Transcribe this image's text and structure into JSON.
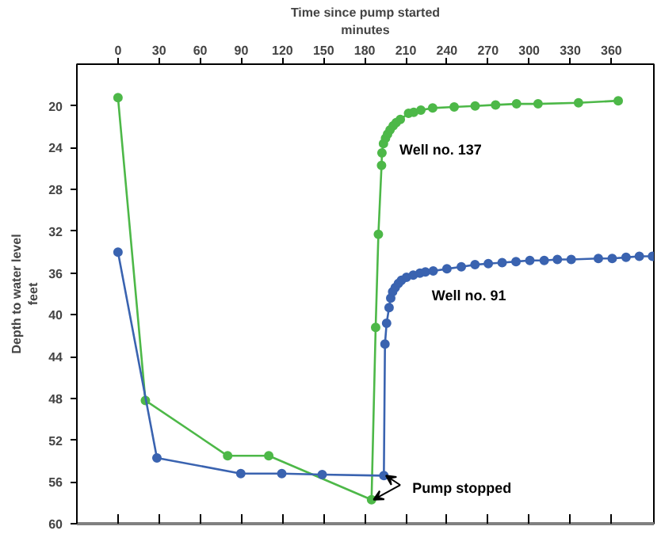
{
  "chart_data": {
    "type": "line",
    "xlabel": "Time since pump started\nminutes",
    "ylabel": "Depth to water level\nfeet",
    "xlim": [
      -30,
      391
    ],
    "xticks": [
      0,
      30,
      60,
      90,
      120,
      150,
      180,
      210,
      240,
      270,
      300,
      330,
      360
    ],
    "ylim": [
      60,
      16
    ],
    "yticks": [
      20,
      24,
      28,
      32,
      36,
      40,
      44,
      48,
      52,
      56,
      60
    ],
    "grid": false,
    "marker": "circle",
    "line_style": "solid",
    "series": [
      {
        "name": "Well no. 137",
        "color": "#4db848",
        "x": [
          0,
          20,
          80,
          110,
          185,
          188,
          190,
          192.3,
          192.6,
          193.7,
          195.2,
          196.7,
          198.5,
          200.8,
          203,
          206,
          212,
          215.8,
          221,
          229.6,
          245.3,
          260.6,
          275.5,
          290.8,
          306.5,
          336,
          365
        ],
        "values": [
          19.2,
          48.2,
          53.5,
          53.5,
          57.7,
          41.2,
          32.3,
          25.7,
          24.5,
          23.6,
          23.1,
          22.7,
          22.3,
          21.9,
          21.6,
          21.3,
          20.7,
          20.6,
          20.4,
          20.2,
          20.1,
          20.0,
          19.9,
          19.8,
          19.8,
          19.7,
          19.5
        ]
      },
      {
        "name": "Well no. 91",
        "color": "#3a63b0",
        "x": [
          0,
          28.4,
          89.6,
          119.5,
          149,
          194,
          194.8,
          196,
          197.8,
          199,
          200.4,
          202.3,
          204.6,
          206.8,
          210.5,
          215.4,
          220.3,
          224.3,
          230,
          240,
          250.5,
          260.5,
          270.2,
          280.3,
          290.4,
          300.5,
          311,
          320.6,
          330.7,
          350.5,
          360.6,
          370.7,
          380.4,
          390
        ],
        "values": [
          34.0,
          53.7,
          55.2,
          55.2,
          55.3,
          55.4,
          42.8,
          40.8,
          39.3,
          38.4,
          37.8,
          37.4,
          37.0,
          36.7,
          36.4,
          36.2,
          36.0,
          35.9,
          35.8,
          35.6,
          35.4,
          35.2,
          35.1,
          35.0,
          34.9,
          34.8,
          34.8,
          34.7,
          34.7,
          34.6,
          34.6,
          34.5,
          34.4,
          34.4
        ]
      }
    ],
    "annotations": [
      {
        "text": "Pump stopped",
        "x": 194,
        "y": 55.4
      }
    ]
  }
}
